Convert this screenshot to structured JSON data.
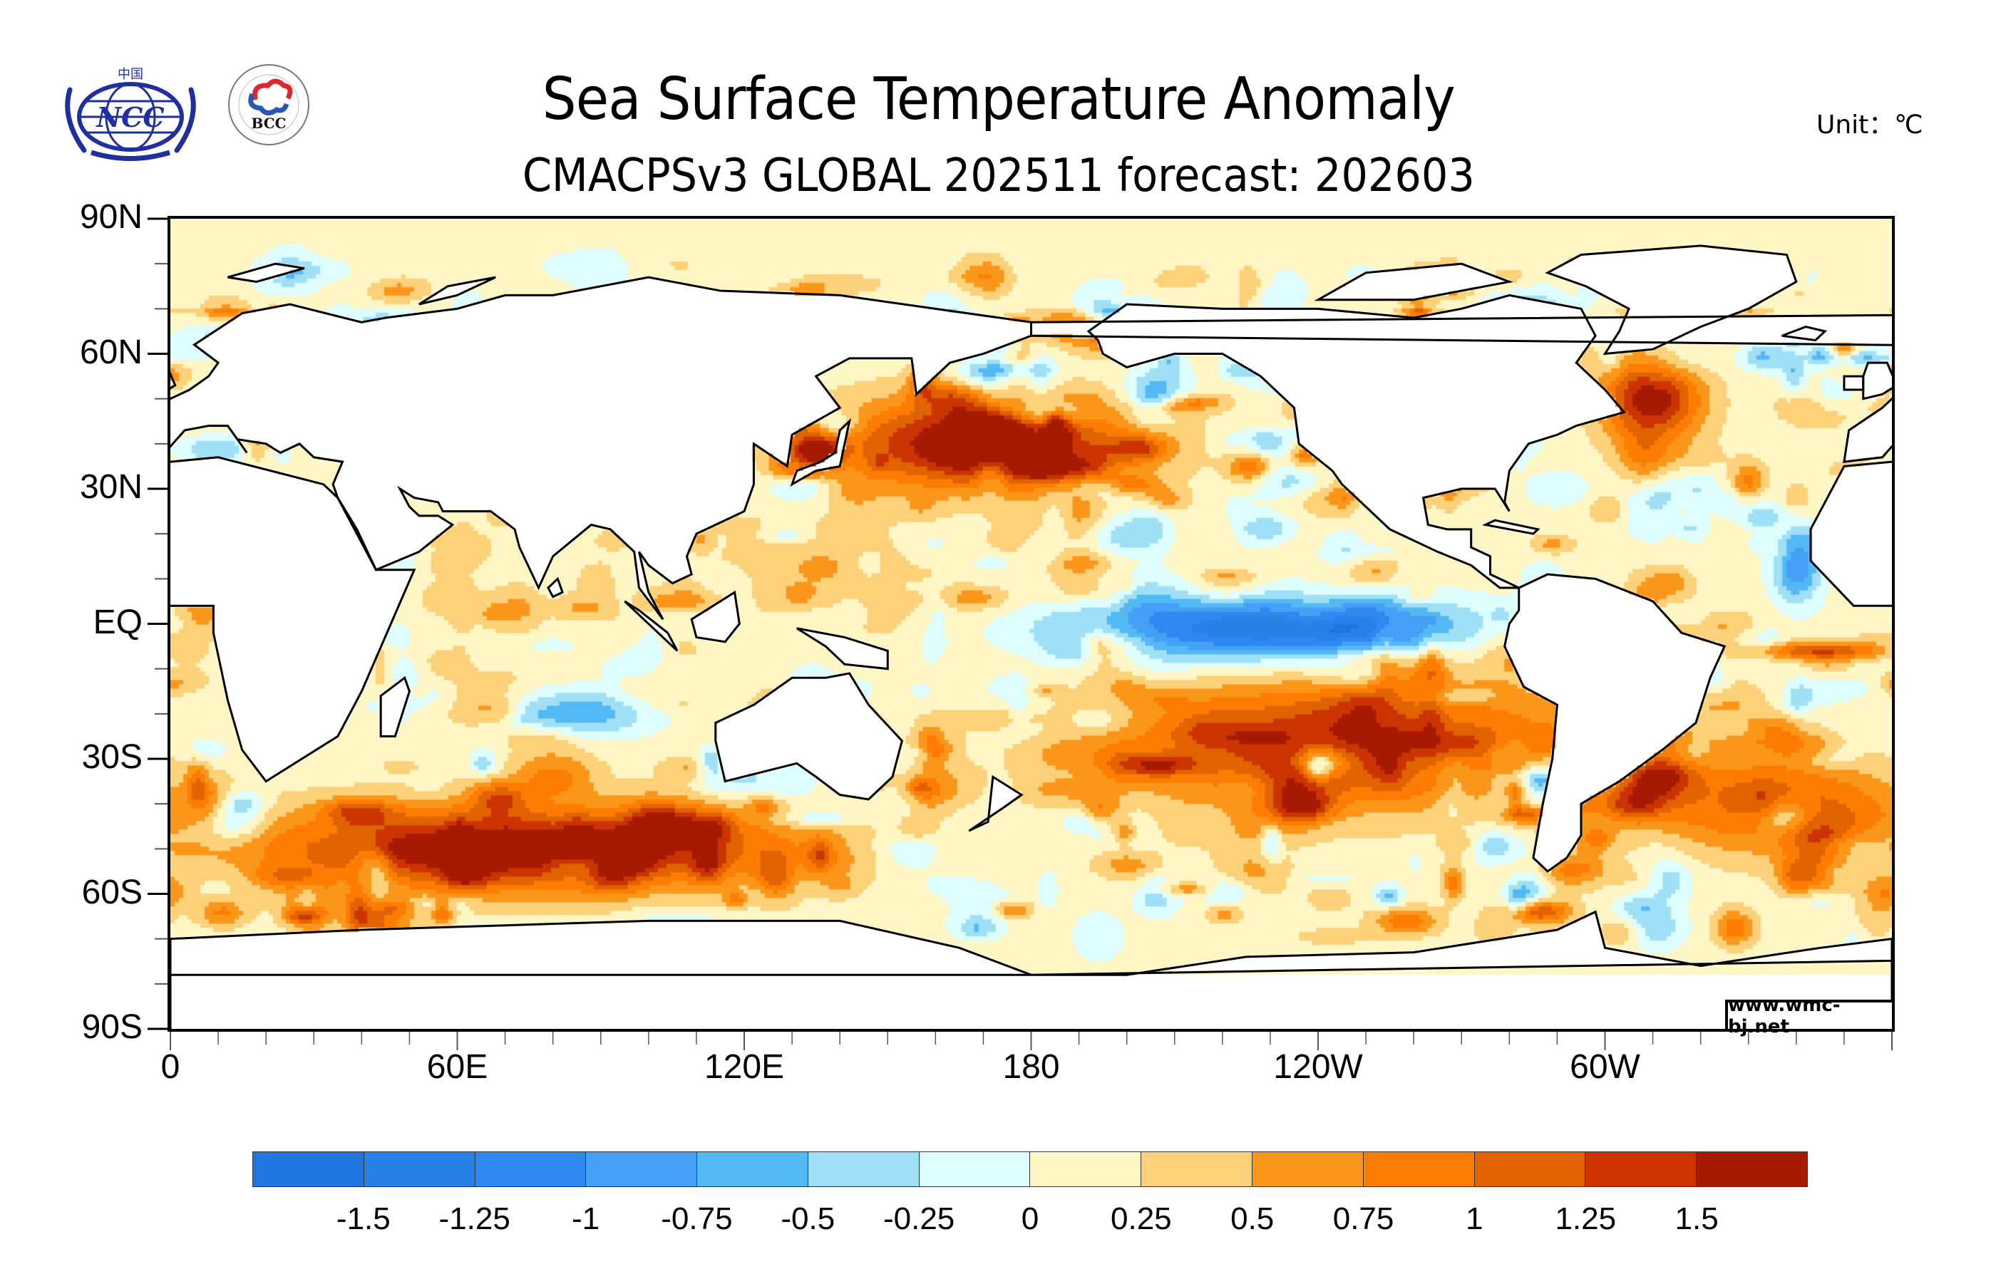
{
  "header": {
    "title": "Sea Surface Temperature Anomaly",
    "subtitle": "CMACPSv3 GLOBAL 202511 forecast: 202603",
    "unit_label": "Unit：℃",
    "logos": [
      {
        "name": "ncc-logo",
        "text": "NCC",
        "top_text": "中国",
        "color": "#1f2fa0"
      },
      {
        "name": "bcc-logo",
        "text": "BCC",
        "ring_text": "BEIJING CLIMATE CENTER",
        "ring_text_cn": "北京气候中心"
      }
    ]
  },
  "credit": "www.wmc-bj.net",
  "chart_data": {
    "type": "heatmap",
    "title": "Sea Surface Temperature Anomaly",
    "subtitle": "CMACPSv3 GLOBAL 202511 forecast: 202603",
    "variable": "SST anomaly",
    "unit": "℃",
    "projection": "cylindrical equidistant, 0° to 360° longitude",
    "xlabel": "",
    "ylabel": "",
    "x_ticks": [
      "0",
      "60E",
      "120E",
      "180",
      "120W",
      "60W"
    ],
    "x_tick_values": [
      0,
      60,
      120,
      180,
      240,
      300
    ],
    "x_range": [
      0,
      360
    ],
    "y_ticks": [
      "90N",
      "60N",
      "30N",
      "EQ",
      "30S",
      "60S",
      "90S"
    ],
    "y_tick_values": [
      90,
      60,
      30,
      0,
      -30,
      -60,
      -90
    ],
    "y_range": [
      -90,
      90
    ],
    "colorbar": {
      "levels": [
        -1.5,
        -1.25,
        -1,
        -0.75,
        -0.5,
        -0.25,
        0,
        0.25,
        0.5,
        0.75,
        1,
        1.25,
        1.5
      ],
      "labels": [
        "-1.5",
        "-1.25",
        "-1",
        "-0.75",
        "-0.5",
        "-0.25",
        "0",
        "0.25",
        "0.5",
        "0.75",
        "1",
        "1.25",
        "1.5"
      ],
      "colors": [
        "#2175e0",
        "#2782e8",
        "#2d88ef",
        "#459ff5",
        "#53b9f4",
        "#a0e0f7",
        "#defdfe",
        "#fff6c6",
        "#fdd07a",
        "#fa9619",
        "#fe7c02",
        "#e06300",
        "#cb3401",
        "#a51a00"
      ],
      "placement": "bottom"
    },
    "features": [
      {
        "region": "Central-eastern equatorial Pacific",
        "lon": [
          190,
          270
        ],
        "lat": [
          -8,
          6
        ],
        "anomaly": -1.5,
        "note": "La Niña-like cold tongue"
      },
      {
        "region": "North Pacific (Kuroshio extension)",
        "lon": [
          140,
          200
        ],
        "lat": [
          30,
          50
        ],
        "anomaly": 1.6,
        "note": "strong warm anomaly"
      },
      {
        "region": "Northwest Atlantic / Labrador Sea",
        "lon": [
          300,
          320
        ],
        "lat": [
          40,
          60
        ],
        "anomaly": 1.5
      },
      {
        "region": "Southern Ocean 40S-60S (Indian sector)",
        "lon": [
          20,
          120
        ],
        "lat": [
          -60,
          -40
        ],
        "anomaly": 1.0
      },
      {
        "region": "Southeast Pacific",
        "lon": [
          200,
          290
        ],
        "lat": [
          -40,
          -15
        ],
        "anomaly": 0.9
      },
      {
        "region": "South Atlantic",
        "lon": [
          310,
          360
        ],
        "lat": [
          -50,
          -30
        ],
        "anomaly": 1.0
      },
      {
        "region": "Southeast Indian Ocean",
        "lon": [
          70,
          100
        ],
        "lat": [
          -25,
          -15
        ],
        "anomaly": -0.75
      },
      {
        "region": "Tropical North Atlantic off West Africa",
        "lon": [
          335,
          345
        ],
        "lat": [
          5,
          20
        ],
        "anomaly": -1.0
      },
      {
        "region": "Eastern equatorial South Atlantic",
        "lon": [
          330,
          360
        ],
        "lat": [
          -8,
          -4
        ],
        "anomaly": 1.0
      },
      {
        "region": "Sea of Japan",
        "lon": [
          130,
          140
        ],
        "lat": [
          35,
          42
        ],
        "anomaly": 1.5
      }
    ]
  }
}
